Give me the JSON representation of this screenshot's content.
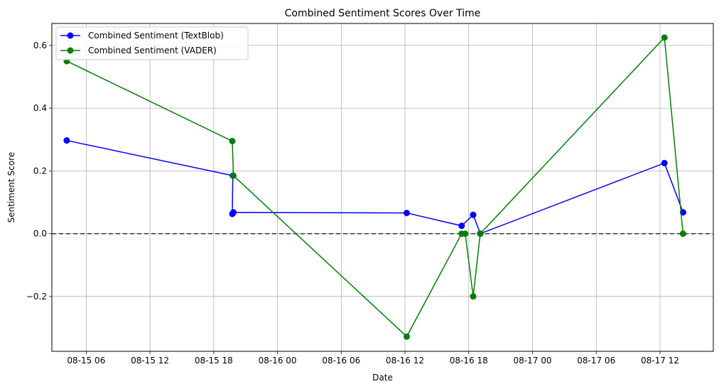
{
  "chart_data": {
    "type": "line",
    "title": "Combined Sentiment Scores Over Time",
    "xlabel": "Date",
    "ylabel": "Sentiment Score",
    "x_ticks": [
      "08-15 06",
      "08-15 12",
      "08-15 18",
      "08-16 00",
      "08-16 06",
      "08-16 12",
      "08-16 18",
      "08-17 00",
      "08-17 06",
      "08-17 12"
    ],
    "y_ticks": [
      "0.6",
      "0.4",
      "0.2",
      "0.0",
      "−0.2"
    ],
    "xlim": [
      "2024-08-15T02:46",
      "2024-08-17T17:01"
    ],
    "ylim": [
      -0.375,
      0.67
    ],
    "grid": true,
    "legend_position": "top-left",
    "reference_line": {
      "y": 0.0,
      "style": "dashed"
    },
    "series": [
      {
        "name": "Combined Sentiment (TextBlob)",
        "color": "#0000ff",
        "points": [
          [
            "2024-08-15T04:10",
            0.297
          ],
          [
            "2024-08-15T19:48",
            0.185
          ],
          [
            "2024-08-15T19:45",
            0.063
          ],
          [
            "2024-08-15T19:51",
            0.068
          ],
          [
            "2024-08-16T12:10",
            0.066
          ],
          [
            "2024-08-16T17:20",
            0.025
          ],
          [
            "2024-08-16T18:25",
            0.06
          ],
          [
            "2024-08-16T19:05",
            0.0
          ],
          [
            "2024-08-17T12:25",
            0.225
          ],
          [
            "2024-08-17T14:10",
            0.068
          ]
        ]
      },
      {
        "name": "Combined Sentiment (VADER)",
        "color": "#008000",
        "points": [
          [
            "2024-08-15T04:10",
            0.55
          ],
          [
            "2024-08-15T19:45",
            0.295
          ],
          [
            "2024-08-15T19:51",
            0.185
          ],
          [
            "2024-08-16T12:10",
            -0.328
          ],
          [
            "2024-08-16T17:20",
            0.0
          ],
          [
            "2024-08-16T17:40",
            0.0
          ],
          [
            "2024-08-16T18:25",
            -0.2
          ],
          [
            "2024-08-16T19:05",
            0.0
          ],
          [
            "2024-08-17T12:25",
            0.625
          ],
          [
            "2024-08-17T14:10",
            0.0
          ]
        ]
      }
    ]
  }
}
